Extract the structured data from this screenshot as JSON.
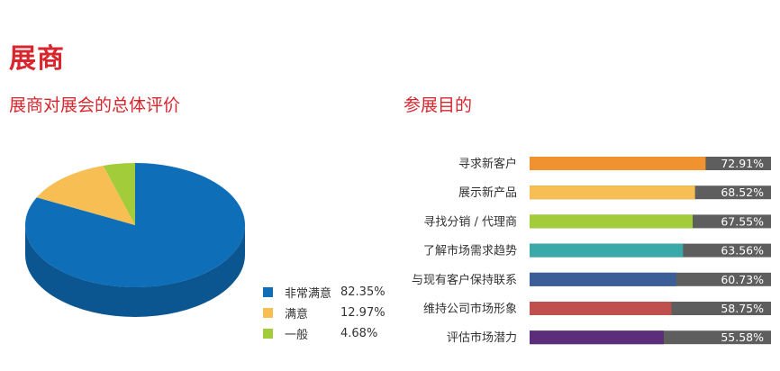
{
  "page": {
    "title": "展商"
  },
  "chart_data": [
    {
      "type": "pie",
      "title": "展商对展会的总体评价",
      "slices": [
        {
          "label": "非常满意",
          "value": 82.35,
          "value_label": "82.35%",
          "color": "#0e6eb8"
        },
        {
          "label": "满意",
          "value": 12.97,
          "value_label": "12.97%",
          "color": "#f6be53"
        },
        {
          "label": "一般",
          "value": 4.68,
          "value_label": "4.68%",
          "color": "#a2cc3a"
        }
      ],
      "legend_position": "bottom-right",
      "style": "3d"
    },
    {
      "type": "bar",
      "orientation": "horizontal",
      "title": "参展目的",
      "xlim": [
        0,
        100
      ],
      "track_color": "#5e5e5e",
      "categories": [
        {
          "label": "寻求新客户",
          "value": 72.91,
          "value_label": "72.91%",
          "color": "#f0922f"
        },
        {
          "label": "展示新产品",
          "value": 68.52,
          "value_label": "68.52%",
          "color": "#f6be53"
        },
        {
          "label": "寻找分销 / 代理商",
          "value": 67.55,
          "value_label": "67.55%",
          "color": "#a2cc3a"
        },
        {
          "label": "了解市场需求趋势",
          "value": 63.56,
          "value_label": "63.56%",
          "color": "#3aa9a9"
        },
        {
          "label": "与现有客户保持联系",
          "value": 60.73,
          "value_label": "60.73%",
          "color": "#3b5e99"
        },
        {
          "label": "维持公司市场形象",
          "value": 58.75,
          "value_label": "58.75%",
          "color": "#c0504d"
        },
        {
          "label": "评估市场潜力",
          "value": 55.58,
          "value_label": "55.58%",
          "color": "#5c2d7a"
        }
      ]
    }
  ]
}
